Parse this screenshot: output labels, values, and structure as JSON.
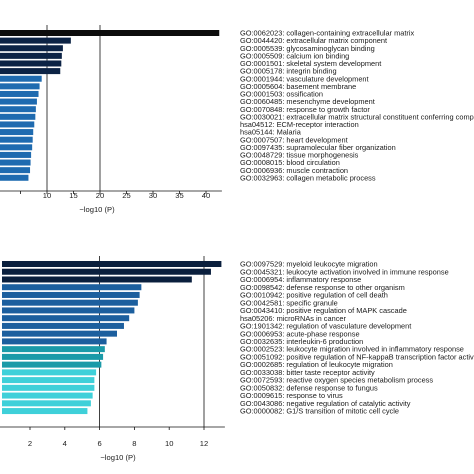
{
  "chart_data": [
    {
      "type": "bar",
      "orientation": "horizontal",
      "xlabel": "−log10 (P)",
      "xticks": [
        "10",
        "15",
        "20",
        "25",
        "30",
        "35",
        "40"
      ],
      "xlim": [
        5,
        43
      ],
      "threshold_lines": [
        10,
        20
      ],
      "categories": [
        "GO:0062023: collagen-containing extracellular matrix",
        "GO:0044420: extracellular matrix component",
        "GO:0005539: glycosaminoglycan binding",
        "GO:0005509: calcium ion binding",
        "GO:0001501: skeletal system development",
        "GO:0005178: integrin binding",
        "GO:0001944: vasculature development",
        "GO:0005604: basement membrane",
        "GO:0001503: ossification",
        "GO:0060485: mesenchyme development",
        "GO:0070848: response to growth factor",
        "GO:0030021: extracellular matrix structural constituent conferring compression resista",
        "hsa04512: ECM-receptor interaction",
        "hsa05144: Malaria",
        "GO:0007507: heart development",
        "GO:0097435: supramolecular fiber organization",
        "GO:0048729: tissue morphogenesis",
        "GO:0008015: blood circulation",
        "GO:0006936: muscle contraction",
        "GO:0032963: collagen metabolic process"
      ],
      "values": [
        42.5,
        14.5,
        13.0,
        12.8,
        12.7,
        12.5,
        9.0,
        8.6,
        8.4,
        8.1,
        7.9,
        7.8,
        7.6,
        7.4,
        7.3,
        7.2,
        7.0,
        6.9,
        6.8,
        6.5
      ],
      "colors": [
        "#0d0d0d",
        "#0c2345",
        "#0c2345",
        "#0c2345",
        "#0c2345",
        "#0c2345",
        "#1f6bb0",
        "#1f6bb0",
        "#1f6bb0",
        "#1f6bb0",
        "#1f6bb0",
        "#1f6bb0",
        "#1f6bb0",
        "#1f6bb0",
        "#1f6bb0",
        "#1f6bb0",
        "#1f6bb0",
        "#1f6bb0",
        "#1f6bb0",
        "#1f6bb0"
      ]
    },
    {
      "type": "bar",
      "orientation": "horizontal",
      "xlabel": "−log10 (P)",
      "xticks": [
        "2",
        "4",
        "6",
        "8",
        "10",
        "12"
      ],
      "xlim": [
        0,
        13.2
      ],
      "threshold_lines": [
        6,
        12
      ],
      "categories": [
        "GO:0097529: myeloid leukocyte migration",
        "GO:0045321: leukocyte activation involved in immune response",
        "GO:0006954: inflammatory response",
        "GO:0098542: defense response to other organism",
        "GO:0010942: positive regulation of cell death",
        "GO:0042581: specific granule",
        "GO:0043410: positive regulation of MAPK cascade",
        "hsa05206: microRNAs in cancer",
        "GO:1901342: regulation of vasculature development",
        "GO:0006953: acute-phase response",
        "GO:0032635: interleukin-6 production",
        "GO:0002523: leukocyte migration involved in inflammatory response",
        "GO:0051092: positive regulation of NF-kappaB transcription factor activity",
        "GO:0002685: regulation of leukocyte migration",
        "GO:0033038: bitter taste receptor activity",
        "GO:0072593: reactive oxygen species metabolism process",
        "GO:0050832: defense response to fungus",
        "GO:0009615: response to virus",
        "GO:0043086: negative regulation of catalytic activity",
        "GO:0000082: G1/S transition of mitotic cell cycle"
      ],
      "values": [
        13.0,
        12.4,
        11.3,
        8.4,
        8.3,
        8.2,
        8.0,
        7.7,
        7.4,
        7.0,
        6.4,
        6.3,
        6.2,
        6.1,
        5.8,
        5.7,
        5.7,
        5.6,
        5.5,
        5.3
      ],
      "colors": [
        "#0a1f3d",
        "#0a1f3d",
        "#0a1f3d",
        "#1c5f9e",
        "#1c5f9e",
        "#1c5f9e",
        "#1c5f9e",
        "#1c5f9e",
        "#1c5f9e",
        "#1c5f9e",
        "#1c5f9e",
        "#1a9aa8",
        "#1a9aa8",
        "#1a9aa8",
        "#3fd0d9",
        "#3fd0d9",
        "#3fd0d9",
        "#3fd0d9",
        "#3fd0d9",
        "#3fd0d9"
      ]
    }
  ]
}
